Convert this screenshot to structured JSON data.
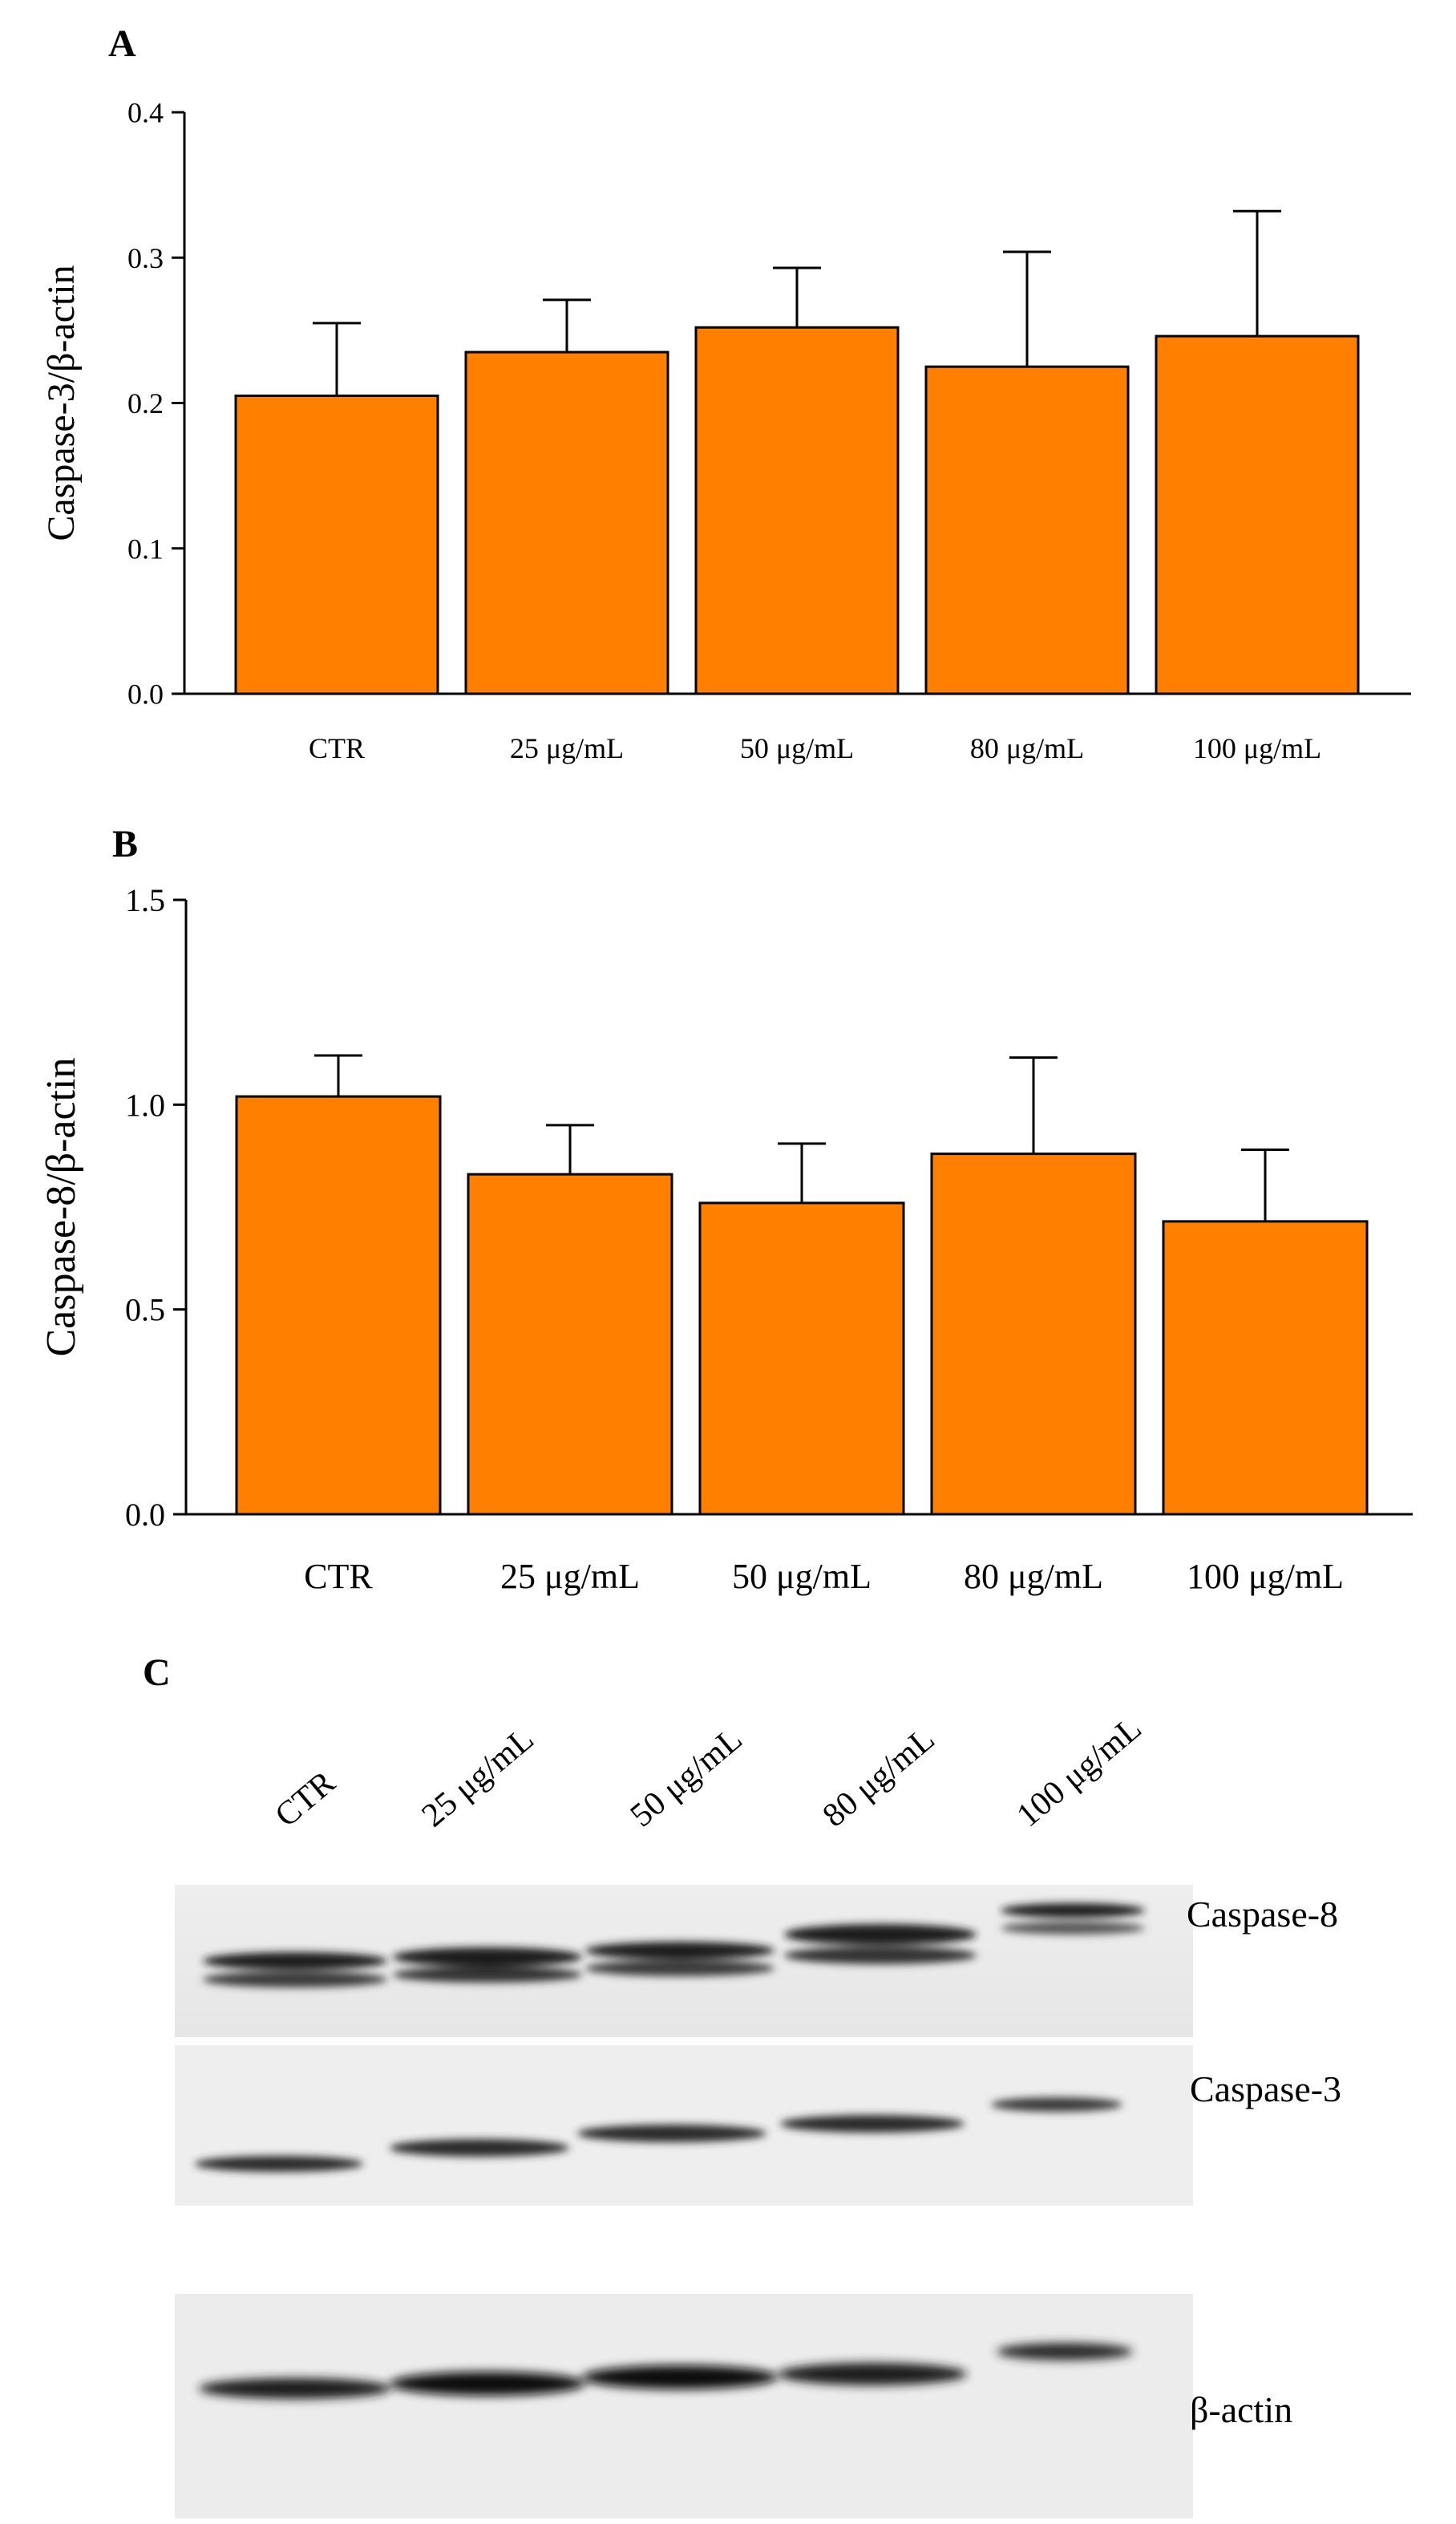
{
  "chart_data": [
    {
      "panel": "A",
      "type": "bar",
      "ylabel": "Caspase-3/β-actin",
      "xlabel": "",
      "categories": [
        "CTR",
        "25 μg/mL",
        "50 μg/mL",
        "80 μg/mL",
        "100 μg/mL"
      ],
      "values": [
        0.205,
        0.235,
        0.252,
        0.225,
        0.246
      ],
      "errors": [
        0.05,
        0.036,
        0.041,
        0.079,
        0.086
      ],
      "ylim": [
        0,
        0.4
      ],
      "yticks": [
        "0.0",
        "0.1",
        "0.2",
        "0.3",
        "0.4"
      ],
      "yticks_values": [
        0,
        0.1,
        0.2,
        0.3,
        0.4
      ],
      "bar_color": "#ff8000"
    },
    {
      "panel": "B",
      "type": "bar",
      "ylabel": "Caspase-8/β-actin",
      "xlabel": "",
      "categories": [
        "CTR",
        "25 μg/mL",
        "50 μg/mL",
        "80 μg/mL",
        "100 μg/mL"
      ],
      "values": [
        1.02,
        0.83,
        0.76,
        0.88,
        0.715
      ],
      "errors": [
        0.1,
        0.12,
        0.145,
        0.235,
        0.175
      ],
      "ylim": [
        0,
        1.5
      ],
      "yticks": [
        "0.0",
        "0.5",
        "1.0",
        "1.5"
      ],
      "yticks_values": [
        0,
        0.5,
        1.0,
        1.5
      ],
      "bar_color": "#ff8000"
    }
  ],
  "blot": {
    "panel": "C",
    "lanes": [
      "CTR",
      "25 μg/mL",
      "50 μg/mL",
      "80 μg/mL",
      "100 μg/mL"
    ],
    "proteins": [
      "Caspase-8",
      "Caspase-3",
      "β-actin"
    ]
  }
}
